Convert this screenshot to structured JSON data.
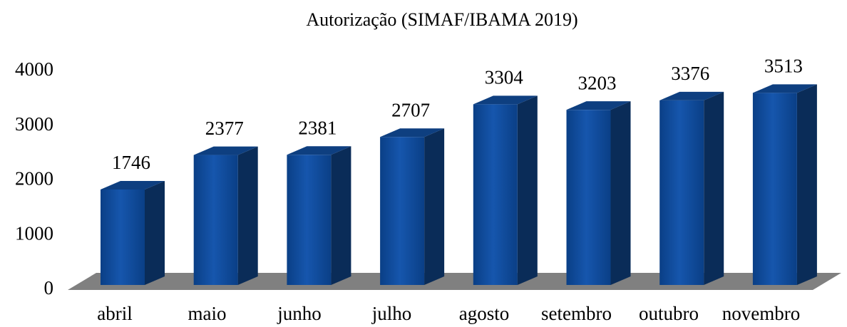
{
  "chart_data": {
    "type": "bar",
    "title": "Autorização (SIMAF/IBAMA 2019)",
    "categories": [
      "abril",
      "maio",
      "junho",
      "julho",
      "agosto",
      "setembro",
      "outubro",
      "novembro"
    ],
    "values": [
      1746,
      2377,
      2381,
      2707,
      3304,
      3203,
      3376,
      3513
    ],
    "color": "#0b4a9c",
    "ylim": [
      0,
      4000
    ],
    "yticks": [
      0,
      1000,
      2000,
      3000,
      4000
    ],
    "grid": false
  }
}
